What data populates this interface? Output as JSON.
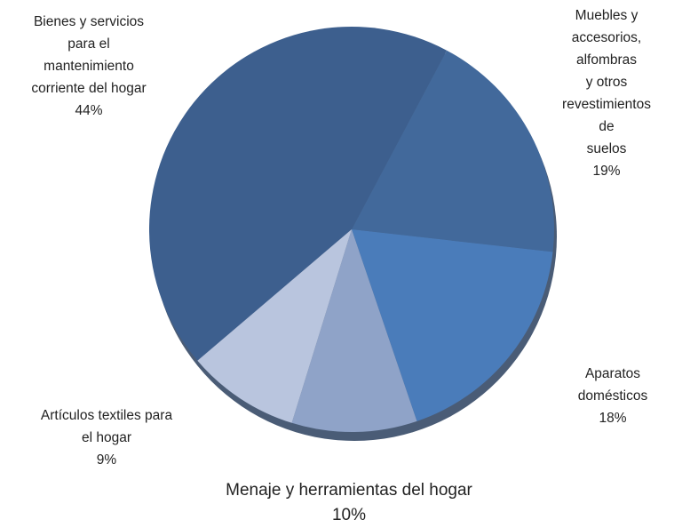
{
  "chart_data": {
    "type": "pie",
    "categories": [
      "Bienes y servicios\npara el\nmantenimiento\ncorriente del hogar",
      "Muebles y\naccesorios, alfombras\ny otros\nrevestimientos de\nsuelos",
      "Aparatos domésticos",
      "Menaje y herramientas del hogar",
      "Artículos textiles para\nel hogar"
    ],
    "values": [
      44,
      19,
      18,
      10,
      9
    ],
    "value_labels": [
      "44%",
      "19%",
      "18%",
      "10%",
      "9%"
    ],
    "colors": [
      "#3d5f8e",
      "#42699b",
      "#4a7cba",
      "#8fa3c8",
      "#b9c5de"
    ]
  }
}
